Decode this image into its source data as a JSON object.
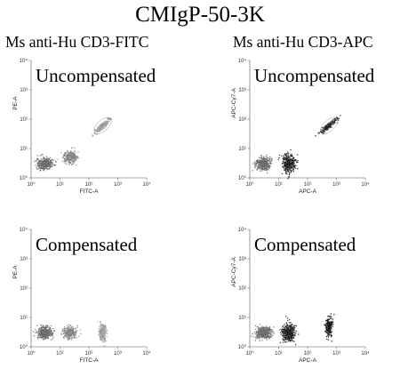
{
  "figure_title": "CMIgP-50-3K",
  "columns": [
    {
      "title": "Ms anti-Hu CD3-FITC"
    },
    {
      "title": "Ms anti-Hu CD3-APC"
    }
  ],
  "chart_data": [
    {
      "type": "scatter",
      "column": "Ms anti-Hu CD3-FITC",
      "annotation": "Uncompensated",
      "xlabel": "FITC-A",
      "ylabel": "PE-A",
      "xscale": "log",
      "yscale": "log",
      "xlim": [
        1,
        10000
      ],
      "ylim": [
        1,
        10000
      ],
      "xticks": [
        "10⁰",
        "10¹",
        "10²",
        "10³",
        "10⁴"
      ],
      "yticks": [
        "10⁰",
        "10¹",
        "10²",
        "10³",
        "10⁴"
      ],
      "populations": [
        {
          "x": 3,
          "y": 3
        },
        {
          "x": 22,
          "y": 5
        },
        {
          "x": 300,
          "y": 60
        }
      ]
    },
    {
      "type": "scatter",
      "column": "Ms anti-Hu CD3-APC",
      "annotation": "Uncompensated",
      "xlabel": "APC-A",
      "ylabel": "APC-Cy7-A",
      "xscale": "log",
      "yscale": "log",
      "xlim": [
        1,
        10000
      ],
      "ylim": [
        1,
        10000
      ],
      "xticks": [
        "10⁰",
        "10¹",
        "10²",
        "10³",
        "10⁴"
      ],
      "yticks": [
        "10⁰",
        "10¹",
        "10²",
        "10³",
        "10⁴"
      ],
      "populations": [
        {
          "x": 3,
          "y": 3
        },
        {
          "x": 22,
          "y": 3
        },
        {
          "x": 550,
          "y": 60
        }
      ]
    },
    {
      "type": "scatter",
      "column": "Ms anti-Hu CD3-FITC",
      "annotation": "Compensated",
      "xlabel": "FITC-A",
      "ylabel": "PE-A",
      "xscale": "log",
      "yscale": "log",
      "xlim": [
        1,
        10000
      ],
      "ylim": [
        1,
        10000
      ],
      "xticks": [
        "10⁰",
        "10¹",
        "10²",
        "10³",
        "10⁴"
      ],
      "yticks": [
        "10⁰",
        "10¹",
        "10²",
        "10³",
        "10⁴"
      ],
      "populations": [
        {
          "x": 3,
          "y": 3
        },
        {
          "x": 22,
          "y": 3
        },
        {
          "x": 300,
          "y": 3
        }
      ]
    },
    {
      "type": "scatter",
      "column": "Ms anti-Hu CD3-APC",
      "annotation": "Compensated",
      "xlabel": "APC-A",
      "ylabel": "APC-Cy7-A",
      "xscale": "log",
      "yscale": "log",
      "xlim": [
        1,
        10000
      ],
      "ylim": [
        1,
        10000
      ],
      "xticks": [
        "10⁰",
        "10¹",
        "10²",
        "10³",
        "10⁴"
      ],
      "yticks": [
        "10⁰",
        "10¹",
        "10²",
        "10³",
        "10⁴"
      ],
      "populations": [
        {
          "x": 3,
          "y": 3
        },
        {
          "x": 22,
          "y": 3
        },
        {
          "x": 550,
          "y": 5
        }
      ]
    }
  ]
}
